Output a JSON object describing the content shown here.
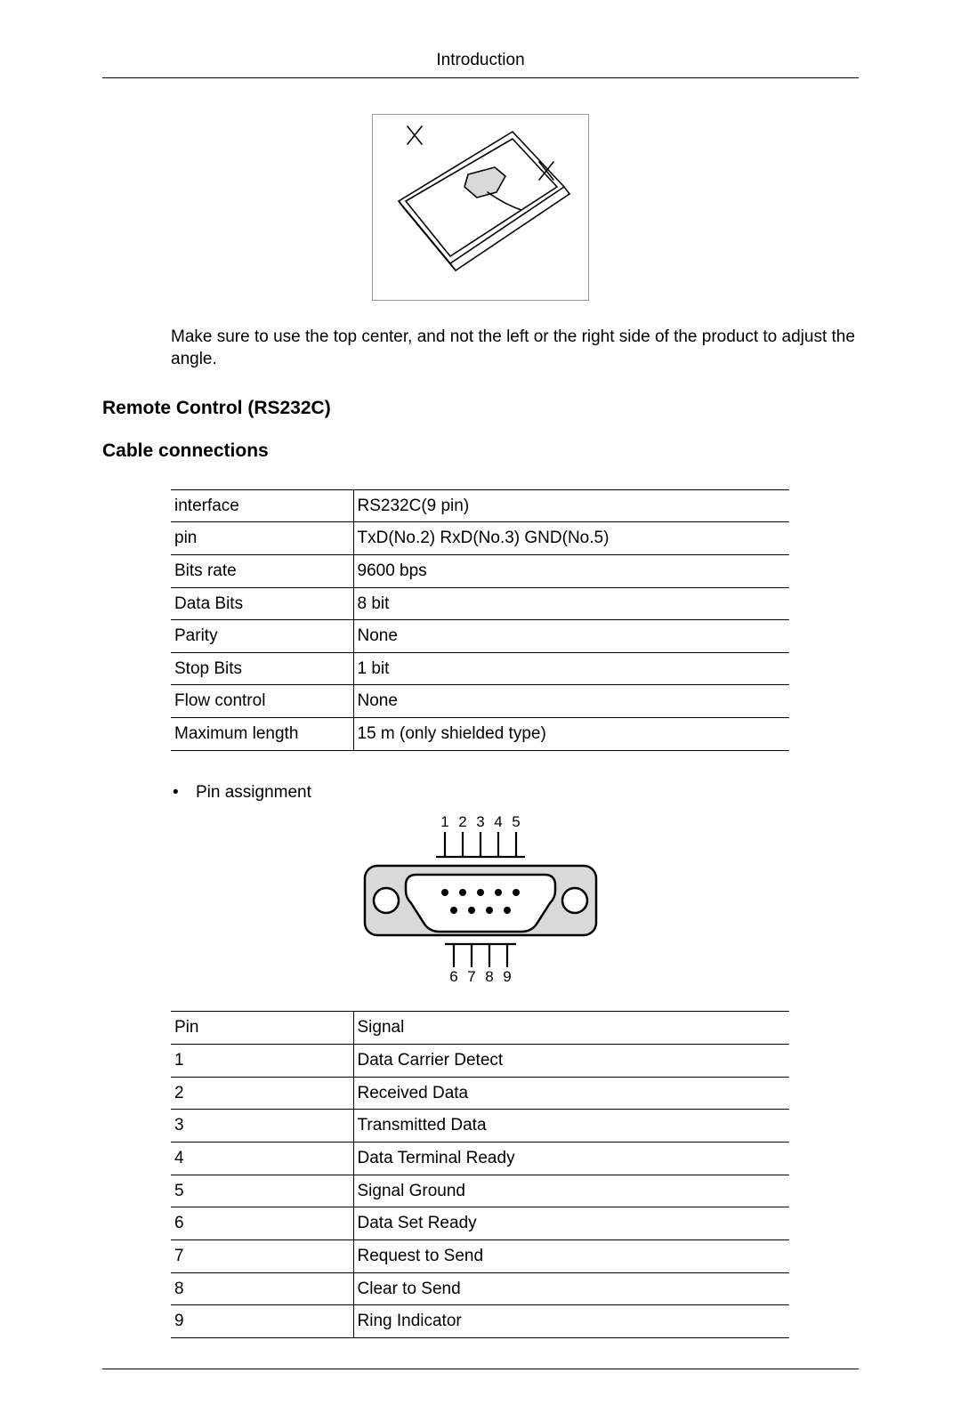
{
  "header": {
    "title": "Introduction"
  },
  "figure1": {
    "caption": "Make sure to use the top center, and not the left or the right side of the product to adjust the angle."
  },
  "section": {
    "title": "Remote Control (RS232C)",
    "subtitle": "Cable connections"
  },
  "spec_table": {
    "rows": [
      [
        "interface",
        "RS232C(9 pin)"
      ],
      [
        "pin",
        "TxD(No.2) RxD(No.3) GND(No.5)"
      ],
      [
        "Bits rate",
        "9600 bps"
      ],
      [
        "Data Bits",
        "8 bit"
      ],
      [
        "Parity",
        "None"
      ],
      [
        "Stop Bits",
        "1 bit"
      ],
      [
        "Flow control",
        "None"
      ],
      [
        "Maximum length",
        "15 m (only shielded type)"
      ]
    ]
  },
  "bullet": {
    "label": "Pin assignment"
  },
  "connector_labels": {
    "top": [
      "1",
      "2",
      "3",
      "4",
      "5"
    ],
    "bottom": [
      "6",
      "7",
      "8",
      "9"
    ]
  },
  "pin_table": {
    "header": [
      "Pin",
      "Signal"
    ],
    "rows": [
      [
        "1",
        "Data Carrier Detect"
      ],
      [
        "2",
        "Received Data"
      ],
      [
        "3",
        "Transmitted Data"
      ],
      [
        "4",
        "Data Terminal Ready"
      ],
      [
        "5",
        "Signal Ground"
      ],
      [
        "6",
        "Data Set Ready"
      ],
      [
        "7",
        "Request to Send"
      ],
      [
        "8",
        "Clear to Send"
      ],
      [
        "9",
        "Ring Indicator"
      ]
    ]
  },
  "colors": {
    "text": "#000000",
    "border": "#000000",
    "figure_border": "#9a9a9a",
    "svg_gray_fill": "#d9d9d9",
    "svg_stroke": "#000000"
  }
}
